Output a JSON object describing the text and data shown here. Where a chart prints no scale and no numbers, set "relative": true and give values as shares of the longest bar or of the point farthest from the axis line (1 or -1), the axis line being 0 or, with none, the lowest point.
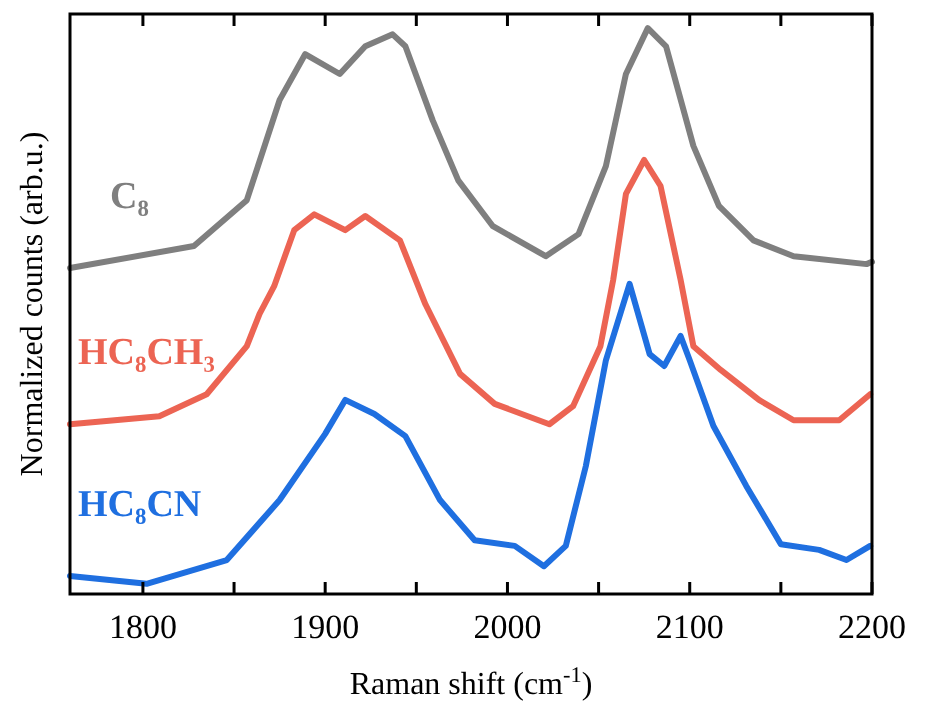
{
  "chart_data": {
    "type": "line",
    "relative": true,
    "xlabel": "Raman shift (cm$^{-1}$)",
    "ylabel": "Normalized counts (arb.u.)",
    "xlim": [
      1760,
      2200
    ],
    "xticks": [
      1800,
      {
        "value": 1850,
        "label": null
      },
      1900,
      {
        "value": 1950,
        "label": null
      },
      2000,
      {
        "value": 2050,
        "label": null
      },
      2100,
      {
        "value": 2150,
        "label": null
      },
      2200
    ],
    "legend": false,
    "grid": false,
    "marker": "none",
    "line_style": "solid",
    "series": [
      {
        "name": "C₈",
        "color": "#7f7f7f",
        "x": [
          1760,
          1828,
          1857,
          1875,
          1889,
          1908,
          1922,
          1937,
          1944,
          1959,
          1973,
          1992,
          2021,
          2039,
          2054,
          2065,
          2077,
          2087,
          2102,
          2116,
          2135,
          2157,
          2197,
          2200
        ],
        "values": [
          0.576,
          0.615,
          0.696,
          0.873,
          0.954,
          0.919,
          0.968,
          0.989,
          0.968,
          0.837,
          0.731,
          0.65,
          0.597,
          0.636,
          0.756,
          0.919,
          1.0,
          0.968,
          0.792,
          0.686,
          0.625,
          0.597,
          0.583,
          0.587
        ]
      },
      {
        "name": "HC₈CH₃",
        "color": "#ec6453",
        "x": [
          1760,
          1809,
          1835,
          1857,
          1864,
          1872,
          1883,
          1894,
          1911,
          1922,
          1941,
          1955,
          1974,
          1993,
          2023,
          2036,
          2051,
          2058,
          2065,
          2075,
          2084,
          2095,
          2102,
          2117,
          2138,
          2157,
          2182,
          2199
        ],
        "values": [
          0.3,
          0.314,
          0.353,
          0.438,
          0.495,
          0.544,
          0.643,
          0.671,
          0.643,
          0.668,
          0.625,
          0.512,
          0.389,
          0.336,
          0.3,
          0.332,
          0.438,
          0.555,
          0.707,
          0.767,
          0.721,
          0.555,
          0.438,
          0.396,
          0.343,
          0.307,
          0.307,
          0.353
        ]
      },
      {
        "name": "HC₈CN",
        "color": "#1f6fe0",
        "x": [
          1760,
          1802,
          1846,
          1875,
          1900,
          1911,
          1927,
          1944,
          1963,
          1982,
          2004,
          2020,
          2032,
          2043,
          2054,
          2067,
          2078,
          2086,
          2095,
          2100,
          2113,
          2131,
          2150,
          2171,
          2186,
          2199
        ],
        "values": [
          0.032,
          0.018,
          0.06,
          0.166,
          0.283,
          0.343,
          0.318,
          0.279,
          0.166,
          0.095,
          0.085,
          0.049,
          0.085,
          0.226,
          0.413,
          0.548,
          0.424,
          0.403,
          0.456,
          0.413,
          0.297,
          0.191,
          0.088,
          0.078,
          0.06,
          0.085
        ]
      }
    ]
  }
}
